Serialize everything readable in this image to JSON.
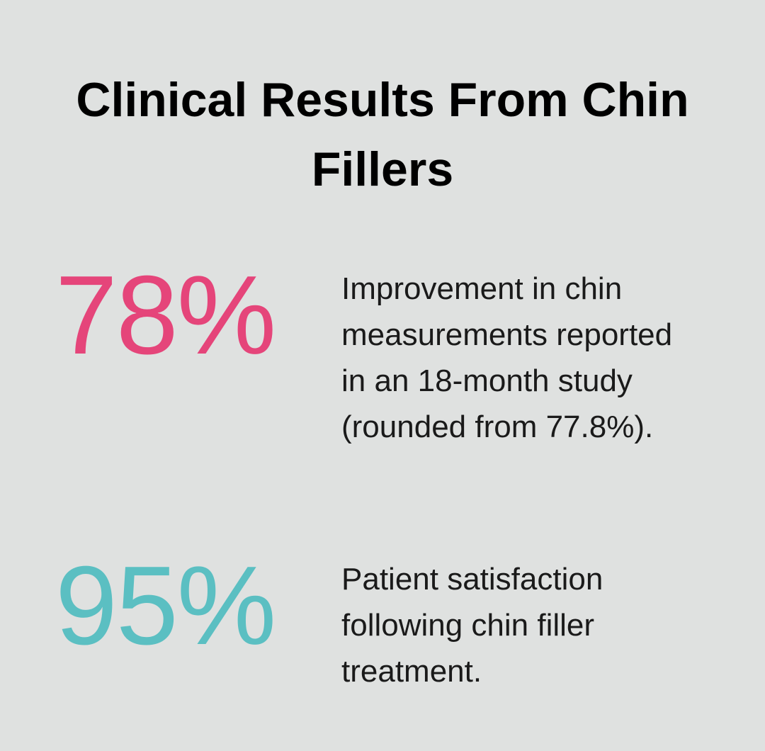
{
  "title": "Clinical Results From Chin Fillers",
  "stats": [
    {
      "value": "78%",
      "color": "#e5457a",
      "description": "Improvement in chin measurements reported in an 18-month study (rounded from 77.8%)."
    },
    {
      "value": "95%",
      "color": "#5bbfc2",
      "description": "Patient satisfaction following chin filler treatment."
    }
  ]
}
